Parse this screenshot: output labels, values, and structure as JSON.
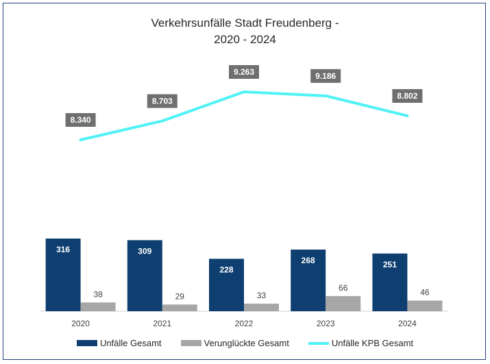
{
  "title": {
    "line1": "Verkehrsunfälle Stadt Freudenberg -",
    "line2": "2020 - 2024"
  },
  "colors": {
    "unfaelle": "#0e3f70",
    "verunglueckte": "#a6a6a6",
    "kpb": "#4ff2f6",
    "label_box": "#6f6f6f",
    "axis": "#d0d0d0"
  },
  "chart_data": {
    "type": "bar",
    "categories": [
      "2020",
      "2021",
      "2022",
      "2023",
      "2024"
    ],
    "series": [
      {
        "name": "Unfälle Gesamt",
        "type": "bar",
        "values": [
          316,
          309,
          228,
          268,
          251
        ],
        "labels": [
          "316",
          "309",
          "228",
          "268",
          "251"
        ]
      },
      {
        "name": "Verunglückte Gesamt",
        "type": "bar",
        "values": [
          38,
          29,
          33,
          66,
          46
        ],
        "labels": [
          "38",
          "29",
          "33",
          "66",
          "46"
        ]
      },
      {
        "name": "Unfälle KPB Gesamt",
        "type": "line",
        "values": [
          8340,
          8703,
          9263,
          9186,
          8802
        ],
        "labels": [
          "8.340",
          "8.703",
          "9.263",
          "9.186",
          "8.802"
        ]
      }
    ],
    "title": "Verkehrsunfälle Stadt Freudenberg - 2020 - 2024",
    "xlabel": "",
    "ylabel": "",
    "legend_position": "bottom",
    "grid": false
  }
}
